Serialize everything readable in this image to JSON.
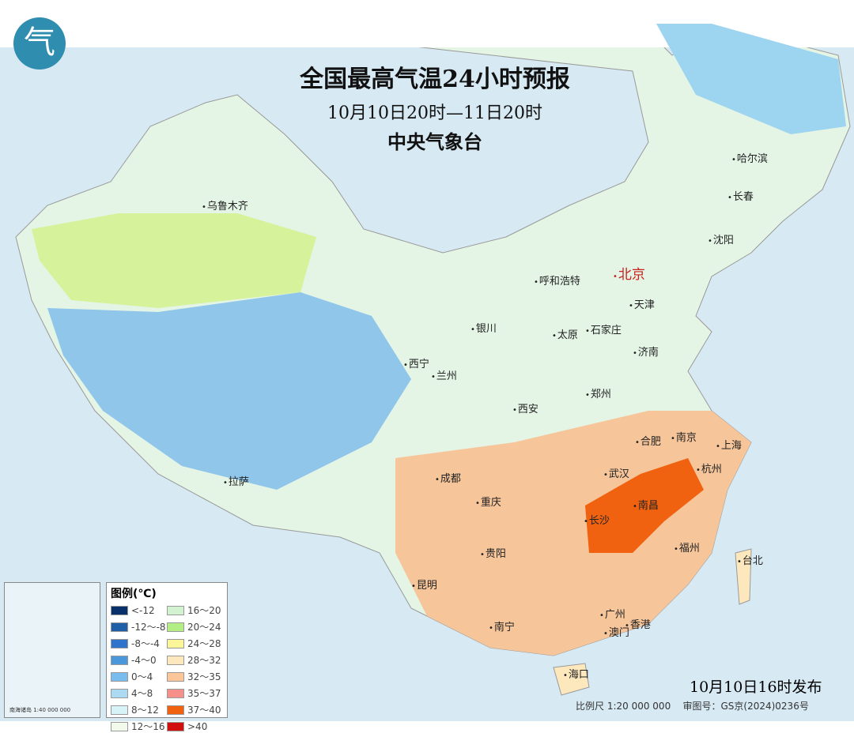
{
  "title": "全国最高气温24小时预报",
  "period": "10月10日20时—11日20时",
  "agency": "中央气象台",
  "logo": "气",
  "publish": "10月10日16时发布",
  "scale": "比例尺 1:20 000 000",
  "review": "审图号：GS京(2024)0236号",
  "inset_scale": "南海诸岛 1:40 000 000",
  "legend": {
    "title": "图例(℃)",
    "items": [
      {
        "label": "<-12",
        "color": "#08306b"
      },
      {
        "label": "-12～-8",
        "color": "#1f5fa8"
      },
      {
        "label": "-8～-4",
        "color": "#2f74cc"
      },
      {
        "label": "-4～0",
        "color": "#4a97dc"
      },
      {
        "label": "0～4",
        "color": "#79bdee"
      },
      {
        "label": "4～8",
        "color": "#acdaf2"
      },
      {
        "label": "8～12",
        "color": "#d8f3f8"
      },
      {
        "label": "12～16",
        "color": "#f1faeb"
      },
      {
        "label": "16～20",
        "color": "#d2f2d0"
      },
      {
        "label": "20～24",
        "color": "#b3ee85"
      },
      {
        "label": "24～28",
        "color": "#fbf69a"
      },
      {
        "label": "28～32",
        "color": "#fde8bd"
      },
      {
        "label": "32～35",
        "color": "#fbc79a"
      },
      {
        "label": "35～37",
        "color": "#f5918a"
      },
      {
        "label": "37～40",
        "color": "#f0620f"
      },
      {
        "label": ">40",
        "color": "#d10f0f"
      }
    ]
  },
  "cities": [
    "乌鲁木齐",
    "哈尔滨",
    "长春",
    "沈阳",
    "北京",
    "呼和浩特",
    "天津",
    "银川",
    "太原",
    "石家庄",
    "济南",
    "西宁",
    "兰州",
    "郑州",
    "西安",
    "合肥",
    "南京",
    "上海",
    "武汉",
    "杭州",
    "成都",
    "重庆",
    "南昌",
    "长沙",
    "拉萨",
    "福州",
    "台北",
    "贵阳",
    "昆明",
    "南宁",
    "广州",
    "香港",
    "澳门",
    "海口"
  ]
}
